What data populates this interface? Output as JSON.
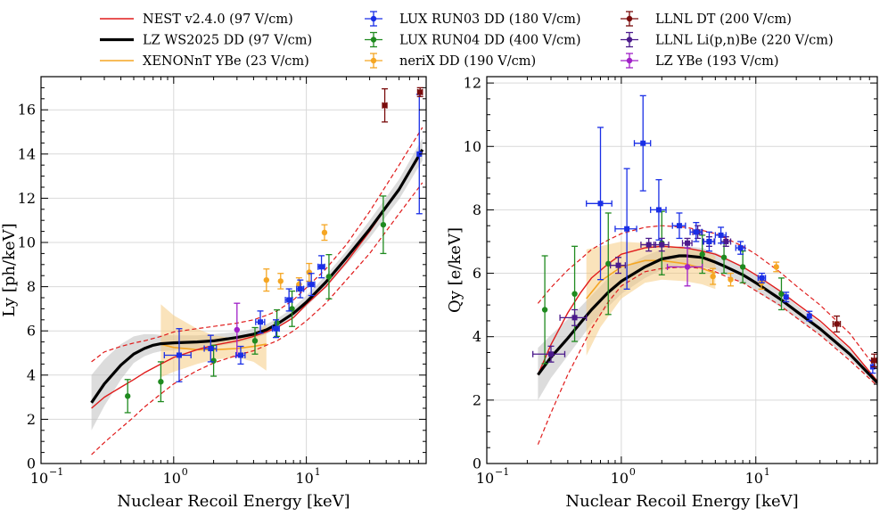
{
  "legend": {
    "items": [
      {
        "label": "NEST v2.4.0 (97 V/cm)",
        "style": "line",
        "color": "#e01b1b",
        "width": 1.6
      },
      {
        "label": "LZ WS2025 DD (97 V/cm)",
        "style": "line",
        "color": "#000000",
        "width": 3.2
      },
      {
        "label": "XENONnT YBe (23 V/cm)",
        "style": "line",
        "color": "#f5a623",
        "width": 1.6
      },
      {
        "label": "LUX RUN03 DD (180 V/cm)",
        "style": "marker",
        "color": "#1a2fe6"
      },
      {
        "label": "LUX RUN04 DD (400 V/cm)",
        "style": "marker",
        "color": "#1f8a1f"
      },
      {
        "label": "neriX DD (190 V/cm)",
        "style": "marker",
        "color": "#f5a623"
      },
      {
        "label": "LLNL DT (200 V/cm)",
        "style": "marker",
        "color": "#7a0c0c"
      },
      {
        "label": "LLNL Li(p,n)Be (220 V/cm)",
        "style": "marker",
        "color": "#4b1a8c"
      },
      {
        "label": "LZ YBe (193 V/cm)",
        "style": "marker",
        "color": "#a020c8"
      }
    ]
  },
  "chart_data": [
    {
      "type": "scatter",
      "title": "",
      "xlabel": "Nuclear Recoil Energy [keV]",
      "ylabel": "Ly [ph/keV]",
      "xscale": "log",
      "xlim": [
        0.1,
        80
      ],
      "ylim": [
        0,
        17.5
      ],
      "x_ticks": [
        0.1,
        1,
        10
      ],
      "x_tick_labels": [
        "10",
        "10",
        "10"
      ],
      "x_tick_exponents": [
        "−1",
        "0",
        "1"
      ],
      "y_ticks": [
        0,
        2,
        4,
        6,
        8,
        10,
        12,
        14,
        16
      ],
      "y_tick_labels": [
        "0",
        "2",
        "4",
        "6",
        "8",
        "10",
        "12",
        "14",
        "16"
      ],
      "grid": true,
      "colors": {
        "nest": "#e01b1b",
        "lz": "#000000",
        "xenon": "#f5a623",
        "lux03": "#1a2fe6",
        "lux04": "#1f8a1f",
        "nerix": "#f5a623",
        "llnl_dt": "#7a0c0c",
        "llnl_li": "#4b1a8c",
        "lz_ybe": "#a020c8",
        "lz_band": "#bfbfbf",
        "xenon_band": "#f5c878"
      },
      "nest_x": [
        0.24,
        0.3,
        0.4,
        0.5,
        0.6,
        0.8,
        1,
        1.5,
        2,
        3,
        4,
        5,
        6,
        8,
        10,
        14,
        20,
        30,
        50,
        75
      ],
      "nest_y": [
        2.5,
        3.0,
        3.45,
        3.8,
        4.1,
        4.5,
        4.8,
        5.15,
        5.35,
        5.55,
        5.75,
        5.95,
        6.15,
        6.6,
        7.2,
        8.0,
        9.1,
        10.5,
        12.4,
        14.1
      ],
      "nest_lo": [
        0.4,
        0.95,
        1.6,
        2.1,
        2.55,
        3.15,
        3.6,
        4.2,
        4.55,
        4.9,
        5.1,
        5.35,
        5.55,
        6.0,
        6.45,
        7.25,
        8.3,
        9.5,
        11.3,
        12.7
      ],
      "nest_hi": [
        4.6,
        5.05,
        5.3,
        5.45,
        5.55,
        5.75,
        5.95,
        6.1,
        6.2,
        6.35,
        6.5,
        6.7,
        6.9,
        7.4,
        7.95,
        8.8,
        9.9,
        11.4,
        13.5,
        15.2
      ],
      "lz_x": [
        0.24,
        0.3,
        0.4,
        0.5,
        0.6,
        0.7,
        0.8,
        1,
        1.5,
        2,
        3,
        4,
        5,
        6,
        8,
        10,
        14,
        20,
        30,
        50,
        75
      ],
      "lz_y": [
        2.75,
        3.6,
        4.45,
        4.95,
        5.2,
        5.35,
        5.42,
        5.46,
        5.5,
        5.55,
        5.7,
        5.85,
        6.05,
        6.3,
        6.8,
        7.3,
        8.2,
        9.3,
        10.6,
        12.4,
        14.2
      ],
      "lz_band_lo": [
        1.5,
        2.6,
        3.8,
        4.55,
        4.85,
        5.0,
        5.08,
        5.12,
        5.2,
        5.3,
        5.45,
        5.65,
        5.85,
        6.1,
        6.6,
        7.1,
        7.95,
        9.0,
        10.2,
        11.95,
        13.7
      ],
      "lz_band_hi": [
        4.0,
        4.7,
        5.4,
        5.75,
        5.85,
        5.85,
        5.82,
        5.8,
        5.8,
        5.85,
        5.95,
        6.1,
        6.3,
        6.55,
        7.05,
        7.6,
        8.5,
        9.6,
        11.0,
        12.85,
        14.7
      ],
      "xenon_x": [
        0.8,
        1,
        1.5,
        2,
        3,
        4,
        5
      ],
      "xenon_y": [
        5.4,
        5.25,
        5.15,
        5.15,
        5.2,
        5.3,
        5.4
      ],
      "xenon_band_lo": [
        3.9,
        4.15,
        4.5,
        4.7,
        4.8,
        4.6,
        4.2
      ],
      "xenon_band_hi": [
        7.2,
        6.7,
        6.1,
        5.8,
        5.65,
        5.85,
        6.3
      ],
      "lux03": {
        "x": [
          1.1,
          1.9,
          3.2,
          4.5,
          5.9,
          7.4,
          9.0,
          10.9,
          13.0,
          71
        ],
        "y": [
          4.9,
          5.2,
          4.9,
          6.4,
          6.1,
          7.4,
          7.9,
          8.1,
          8.9,
          14.0
        ],
        "yerr": [
          1.2,
          0.6,
          0.4,
          0.5,
          0.4,
          0.5,
          0.4,
          0.5,
          0.5,
          2.7
        ],
        "xerr_lo": [
          0.25,
          0.2,
          0.25,
          0.35,
          0.35,
          0.45,
          0.55,
          0.65,
          0.75,
          0
        ],
        "xerr_hi": [
          0.25,
          0.2,
          0.25,
          0.35,
          0.35,
          0.45,
          0.55,
          0.65,
          0.75,
          0
        ]
      },
      "lux04": {
        "x": [
          0.45,
          0.8,
          2.0,
          4.1,
          6.0,
          7.8,
          14.8,
          38
        ],
        "y": [
          3.05,
          3.7,
          4.65,
          5.55,
          6.35,
          7.0,
          8.45,
          10.8
        ],
        "yerr": [
          0.75,
          0.9,
          0.7,
          0.6,
          0.6,
          0.8,
          1.0,
          1.3
        ]
      },
      "nerix": {
        "x": [
          5.0,
          6.4,
          8.8,
          10.5,
          13.7
        ],
        "y": [
          8.3,
          8.25,
          8.1,
          8.65,
          10.45
        ],
        "yerr": [
          0.5,
          0.35,
          0.3,
          0.4,
          0.35
        ]
      },
      "llnl_dt": {
        "x": [
          39,
          72
        ],
        "y": [
          16.2,
          16.8
        ],
        "yerr": [
          0.75,
          0.2
        ],
        "xerr": [
          1.5,
          3
        ]
      },
      "lz_ybe": {
        "x": [
          3.0
        ],
        "y": [
          6.05
        ],
        "yerr": [
          1.2
        ]
      }
    },
    {
      "type": "scatter",
      "title": "",
      "xlabel": "Nuclear Recoil Energy [keV]",
      "ylabel": "Qy [e/keV]",
      "xscale": "log",
      "xlim": [
        0.1,
        80
      ],
      "ylim": [
        0,
        12.2
      ],
      "x_ticks": [
        0.1,
        1,
        10
      ],
      "x_tick_labels": [
        "10",
        "10",
        "10"
      ],
      "x_tick_exponents": [
        "−1",
        "0",
        "1"
      ],
      "y_ticks": [
        0,
        2,
        4,
        6,
        8,
        10,
        12
      ],
      "y_tick_labels": [
        "0",
        "2",
        "4",
        "6",
        "8",
        "10",
        "12"
      ],
      "grid": true,
      "colors": {
        "nest": "#e01b1b",
        "lz": "#000000",
        "xenon": "#f5a623",
        "lux03": "#1a2fe6",
        "lux04": "#1f8a1f",
        "nerix": "#f5a623",
        "llnl_dt": "#7a0c0c",
        "llnl_li": "#4b1a8c",
        "lz_ybe": "#a020c8",
        "lz_band": "#bfbfbf",
        "xenon_band": "#f5c878"
      },
      "nest_x": [
        0.24,
        0.3,
        0.4,
        0.5,
        0.6,
        0.8,
        1,
        1.5,
        2,
        3,
        4,
        5,
        6,
        8,
        10,
        15,
        20,
        30,
        50,
        80
      ],
      "nest_y": [
        2.8,
        3.75,
        4.75,
        5.4,
        5.85,
        6.3,
        6.6,
        6.8,
        6.85,
        6.8,
        6.7,
        6.6,
        6.45,
        6.2,
        5.95,
        5.45,
        5.05,
        4.5,
        3.65,
        2.6
      ],
      "nest_lo": [
        0.6,
        1.6,
        2.8,
        3.6,
        4.25,
        5.1,
        5.6,
        6.05,
        6.15,
        6.2,
        6.15,
        6.05,
        5.9,
        5.7,
        5.45,
        5.0,
        4.6,
        4.05,
        3.25,
        2.45
      ],
      "nest_hi": [
        5.05,
        5.55,
        6.1,
        6.45,
        6.75,
        7.05,
        7.25,
        7.45,
        7.5,
        7.45,
        7.35,
        7.25,
        7.1,
        6.85,
        6.6,
        6.05,
        5.6,
        5.0,
        4.1,
        2.95
      ],
      "lz_x": [
        0.24,
        0.3,
        0.4,
        0.5,
        0.6,
        0.8,
        1,
        1.5,
        2,
        2.7,
        3,
        4,
        5,
        6,
        8,
        10,
        15,
        20,
        30,
        50,
        80
      ],
      "lz_y": [
        2.8,
        3.35,
        3.95,
        4.45,
        4.85,
        5.4,
        5.75,
        6.2,
        6.45,
        6.55,
        6.55,
        6.5,
        6.35,
        6.2,
        5.95,
        5.7,
        5.2,
        4.8,
        4.25,
        3.45,
        2.55
      ],
      "lz_band_lo": [
        2.0,
        2.7,
        3.4,
        3.95,
        4.4,
        4.95,
        5.35,
        5.85,
        6.1,
        6.25,
        6.25,
        6.2,
        6.1,
        5.95,
        5.7,
        5.45,
        4.95,
        4.6,
        4.05,
        3.3,
        2.45
      ],
      "lz_band_hi": [
        3.65,
        4.05,
        4.55,
        4.95,
        5.3,
        5.85,
        6.15,
        6.55,
        6.75,
        6.85,
        6.85,
        6.8,
        6.65,
        6.5,
        6.2,
        5.95,
        5.45,
        5.0,
        4.45,
        3.6,
        2.65
      ],
      "xenon_x": [
        0.55,
        0.7,
        1,
        1.5,
        2,
        3,
        4,
        5
      ],
      "xenon_y": [
        5.2,
        5.75,
        6.2,
        6.4,
        6.4,
        6.3,
        6.15,
        6.0
      ],
      "xenon_band_lo": [
        3.4,
        4.3,
        5.2,
        5.7,
        5.8,
        5.75,
        5.65,
        5.5
      ],
      "xenon_band_hi": [
        6.75,
        6.85,
        7.0,
        6.95,
        6.9,
        6.8,
        6.7,
        6.55
      ],
      "lux03": {
        "x": [
          0.7,
          1.1,
          1.45,
          1.9,
          2.7,
          3.6,
          4.5,
          5.5,
          7.7,
          11.1,
          16.8,
          25,
          74
        ],
        "y": [
          8.2,
          7.4,
          10.1,
          8.0,
          7.5,
          7.3,
          7.0,
          7.2,
          6.8,
          5.85,
          5.25,
          4.65,
          3.05
        ],
        "yerr": [
          2.4,
          1.9,
          1.5,
          0.95,
          0.4,
          0.3,
          0.3,
          0.25,
          0.2,
          0.15,
          0.15,
          0.15,
          0.2
        ],
        "xerr_lo": [
          0.15,
          0.2,
          0.2,
          0.25,
          0.3,
          0.35,
          0.45,
          0.5,
          0.6,
          0.7,
          0,
          0,
          0
        ],
        "xerr_hi": [
          0.15,
          0.2,
          0.2,
          0.25,
          0.3,
          0.35,
          0.45,
          0.5,
          0.6,
          0.7,
          0,
          0,
          0
        ]
      },
      "lux04": {
        "x": [
          0.27,
          0.45,
          0.8,
          2.0,
          4.0,
          5.8,
          8.0,
          15.5
        ],
        "y": [
          4.85,
          5.35,
          6.3,
          6.95,
          6.6,
          6.5,
          6.2,
          5.35
        ],
        "yerr": [
          1.7,
          1.5,
          1.6,
          1.0,
          0.6,
          0.5,
          0.5,
          0.5
        ]
      },
      "nerix": {
        "x": [
          4.8,
          6.5,
          11,
          14.2
        ],
        "y": [
          5.9,
          5.8,
          5.7,
          6.2
        ],
        "yerr": [
          0.25,
          0.2,
          0.2,
          0.15
        ]
      },
      "llnl_dt": {
        "x": [
          40,
          76
        ],
        "y": [
          4.4,
          3.25
        ],
        "yerr": [
          0.25,
          0.2
        ],
        "xerr": [
          2.5,
          3.5
        ]
      },
      "llnl_li": {
        "x": [
          0.3,
          0.45,
          0.95,
          1.6,
          2.0,
          3.1,
          3.7,
          4.5,
          6.0
        ],
        "y": [
          3.45,
          4.6,
          6.25,
          6.9,
          6.9,
          6.95,
          7.3,
          7.0,
          7.0
        ],
        "yerr": [
          0.25,
          0.25,
          0.25,
          0.2,
          0.2,
          0.15,
          0.2,
          0.15,
          0.15
        ],
        "xerr_lo": [
          0.08,
          0.1,
          0.12,
          0.2,
          0.25,
          0.25,
          0.3,
          0.4,
          0.5
        ],
        "xerr_hi": [
          0.08,
          0.1,
          0.12,
          0.2,
          0.25,
          0.25,
          0.3,
          0.4,
          0.5
        ]
      },
      "lz_ybe": {
        "x": [
          3.1
        ],
        "y": [
          6.2
        ],
        "yerr": [
          0.6
        ],
        "xerr": [
          0.9
        ]
      }
    }
  ]
}
